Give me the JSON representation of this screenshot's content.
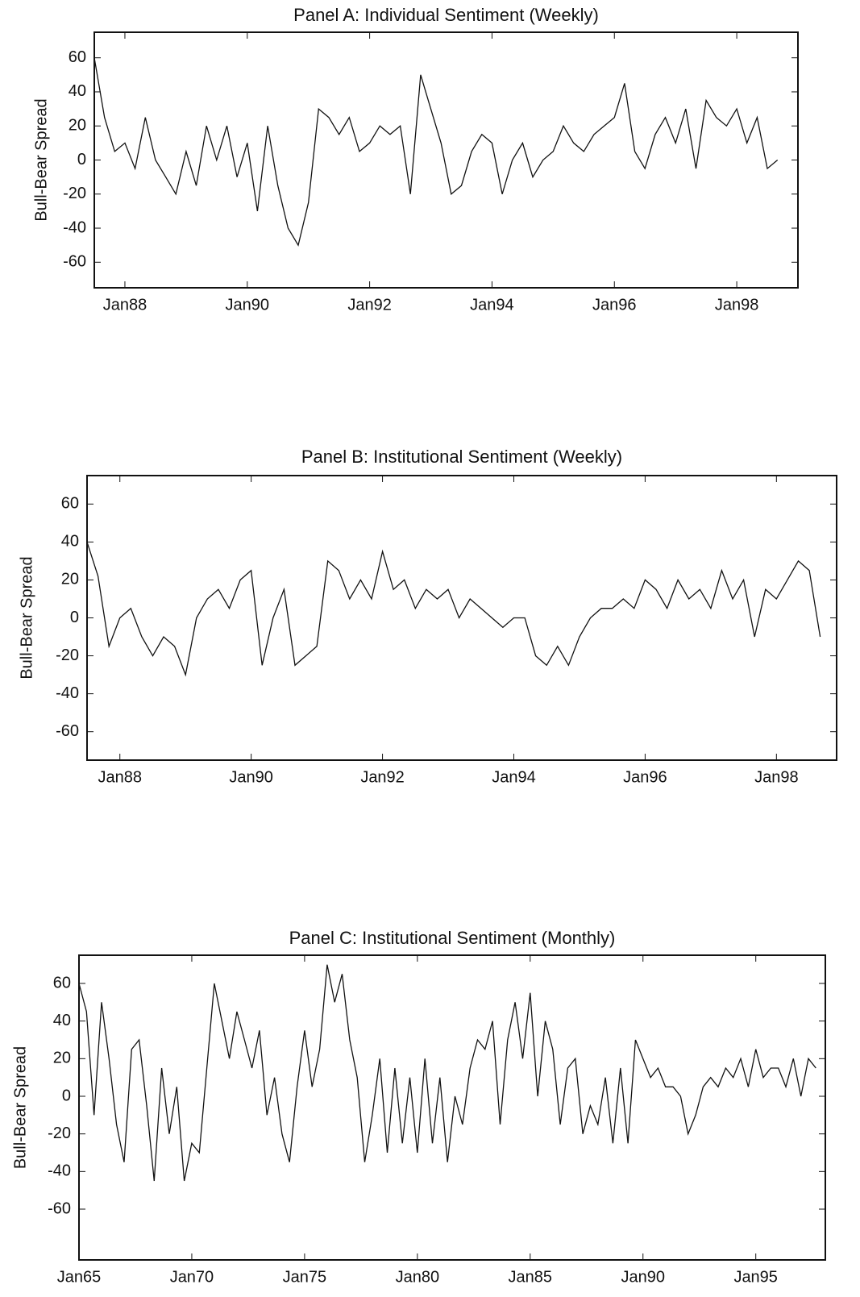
{
  "chart_data": [
    {
      "type": "line",
      "title": "Panel A: Individual Sentiment (Weekly)",
      "y_label": "Bull-Bear Spread",
      "color": "#111111",
      "x": [
        "1987-07",
        "1987-09",
        "1987-11",
        "1988-01",
        "1988-03",
        "1988-05",
        "1988-07",
        "1988-09",
        "1988-11",
        "1989-01",
        "1989-03",
        "1989-05",
        "1989-07",
        "1989-09",
        "1989-11",
        "1990-01",
        "1990-03",
        "1990-05",
        "1990-07",
        "1990-09",
        "1990-11",
        "1991-01",
        "1991-03",
        "1991-05",
        "1991-07",
        "1991-09",
        "1991-11",
        "1992-01",
        "1992-03",
        "1992-05",
        "1992-07",
        "1992-09",
        "1992-11",
        "1993-01",
        "1993-03",
        "1993-05",
        "1993-07",
        "1993-09",
        "1993-11",
        "1994-01",
        "1994-03",
        "1994-05",
        "1994-07",
        "1994-09",
        "1994-11",
        "1995-01",
        "1995-03",
        "1995-05",
        "1995-07",
        "1995-09",
        "1995-11",
        "1996-01",
        "1996-03",
        "1996-05",
        "1996-07",
        "1996-09",
        "1996-11",
        "1997-01",
        "1997-03",
        "1997-05",
        "1997-07",
        "1997-09",
        "1997-11",
        "1998-01",
        "1998-03",
        "1998-05",
        "1998-07",
        "1998-09"
      ],
      "values": [
        60,
        25,
        5,
        10,
        -5,
        25,
        0,
        -10,
        -20,
        5,
        -15,
        20,
        0,
        20,
        -10,
        10,
        -30,
        20,
        -15,
        -40,
        -50,
        -25,
        30,
        25,
        15,
        25,
        5,
        10,
        20,
        15,
        20,
        -20,
        50,
        30,
        10,
        -20,
        -15,
        5,
        15,
        10,
        -20,
        0,
        10,
        -10,
        0,
        5,
        20,
        10,
        5,
        15,
        20,
        25,
        45,
        5,
        -5,
        15,
        25,
        10,
        30,
        -5,
        35,
        25,
        20,
        30,
        10,
        25,
        -5,
        0
      ],
      "xlim": [
        "1987-07",
        "1999-01"
      ],
      "xticks": [
        {
          "value": "1988-01",
          "label": "Jan88"
        },
        {
          "value": "1990-01",
          "label": "Jan90"
        },
        {
          "value": "1992-01",
          "label": "Jan92"
        },
        {
          "value": "1994-01",
          "label": "Jan94"
        },
        {
          "value": "1996-01",
          "label": "Jan96"
        },
        {
          "value": "1998-01",
          "label": "Jan98"
        }
      ],
      "ylim": [
        -75,
        75
      ],
      "yticks": [
        -60,
        -40,
        -20,
        0,
        20,
        40,
        60
      ]
    },
    {
      "type": "line",
      "title": "Panel B: Institutional Sentiment (Weekly)",
      "y_label": "Bull-Bear Spread",
      "color": "#111111",
      "x": [
        "1987-07",
        "1987-09",
        "1987-11",
        "1988-01",
        "1988-03",
        "1988-05",
        "1988-07",
        "1988-09",
        "1988-11",
        "1989-01",
        "1989-03",
        "1989-05",
        "1989-07",
        "1989-09",
        "1989-11",
        "1990-01",
        "1990-03",
        "1990-05",
        "1990-07",
        "1990-09",
        "1990-11",
        "1991-01",
        "1991-03",
        "1991-05",
        "1991-07",
        "1991-09",
        "1991-11",
        "1992-01",
        "1992-03",
        "1992-05",
        "1992-07",
        "1992-09",
        "1992-11",
        "1993-01",
        "1993-03",
        "1993-05",
        "1993-07",
        "1993-09",
        "1993-11",
        "1994-01",
        "1994-03",
        "1994-05",
        "1994-07",
        "1994-09",
        "1994-11",
        "1995-01",
        "1995-03",
        "1995-05",
        "1995-07",
        "1995-09",
        "1995-11",
        "1996-01",
        "1996-03",
        "1996-05",
        "1996-07",
        "1996-09",
        "1996-11",
        "1997-01",
        "1997-03",
        "1997-05",
        "1997-07",
        "1997-09",
        "1997-11",
        "1998-01",
        "1998-03",
        "1998-05",
        "1998-07",
        "1998-09"
      ],
      "values": [
        40,
        22,
        -15,
        0,
        5,
        -10,
        -20,
        -10,
        -15,
        -30,
        0,
        10,
        15,
        5,
        20,
        25,
        -25,
        0,
        15,
        -25,
        -20,
        -15,
        30,
        25,
        10,
        20,
        10,
        35,
        15,
        20,
        5,
        15,
        10,
        15,
        0,
        10,
        5,
        0,
        -5,
        0,
        0,
        -20,
        -25,
        -15,
        -25,
        -10,
        0,
        5,
        5,
        10,
        5,
        20,
        15,
        5,
        20,
        10,
        15,
        5,
        25,
        10,
        20,
        -10,
        15,
        10,
        20,
        30,
        25,
        -10
      ],
      "xlim": [
        "1987-07",
        "1998-12"
      ],
      "xticks": [
        {
          "value": "1988-01",
          "label": "Jan88"
        },
        {
          "value": "1990-01",
          "label": "Jan90"
        },
        {
          "value": "1992-01",
          "label": "Jan92"
        },
        {
          "value": "1994-01",
          "label": "Jan94"
        },
        {
          "value": "1996-01",
          "label": "Jan96"
        },
        {
          "value": "1998-01",
          "label": "Jan98"
        }
      ],
      "ylim": [
        -75,
        75
      ],
      "yticks": [
        -60,
        -40,
        -20,
        0,
        20,
        40,
        60
      ]
    },
    {
      "type": "line",
      "title": "Panel C: Institutional Sentiment (Monthly)",
      "y_label": "Bull-Bear Spread",
      "color": "#111111",
      "x": [
        "1965-01",
        "1965-05",
        "1965-09",
        "1966-01",
        "1966-05",
        "1966-09",
        "1967-01",
        "1967-05",
        "1967-09",
        "1968-01",
        "1968-05",
        "1968-09",
        "1969-01",
        "1969-05",
        "1969-09",
        "1970-01",
        "1970-05",
        "1970-09",
        "1971-01",
        "1971-05",
        "1971-09",
        "1972-01",
        "1972-05",
        "1972-09",
        "1973-01",
        "1973-05",
        "1973-09",
        "1974-01",
        "1974-05",
        "1974-09",
        "1975-01",
        "1975-05",
        "1975-09",
        "1976-01",
        "1976-05",
        "1976-09",
        "1977-01",
        "1977-05",
        "1977-09",
        "1978-01",
        "1978-05",
        "1978-09",
        "1979-01",
        "1979-05",
        "1979-09",
        "1980-01",
        "1980-05",
        "1980-09",
        "1981-01",
        "1981-05",
        "1981-09",
        "1982-01",
        "1982-05",
        "1982-09",
        "1983-01",
        "1983-05",
        "1983-09",
        "1984-01",
        "1984-05",
        "1984-09",
        "1985-01",
        "1985-05",
        "1985-09",
        "1986-01",
        "1986-05",
        "1986-09",
        "1987-01",
        "1987-05",
        "1987-09",
        "1988-01",
        "1988-05",
        "1988-09",
        "1989-01",
        "1989-05",
        "1989-09",
        "1990-01",
        "1990-05",
        "1990-09",
        "1991-01",
        "1991-05",
        "1991-09",
        "1992-01",
        "1992-05",
        "1992-09",
        "1993-01",
        "1993-05",
        "1993-09",
        "1994-01",
        "1994-05",
        "1994-09",
        "1995-01",
        "1995-05",
        "1995-09",
        "1996-01",
        "1996-05",
        "1996-09",
        "1997-01",
        "1997-05",
        "1997-09"
      ],
      "values": [
        60,
        45,
        -10,
        50,
        20,
        -15,
        -35,
        25,
        30,
        -5,
        -45,
        15,
        -20,
        5,
        -45,
        -25,
        -30,
        15,
        60,
        40,
        20,
        45,
        30,
        15,
        35,
        -10,
        10,
        -20,
        -35,
        5,
        35,
        5,
        25,
        70,
        50,
        65,
        30,
        10,
        -35,
        -10,
        20,
        -30,
        15,
        -25,
        10,
        -30,
        20,
        -25,
        10,
        -35,
        0,
        -15,
        15,
        30,
        25,
        40,
        -15,
        30,
        50,
        20,
        55,
        0,
        40,
        25,
        -15,
        15,
        20,
        -20,
        -5,
        -15,
        10,
        -25,
        15,
        -25,
        30,
        20,
        10,
        15,
        5,
        5,
        0,
        -20,
        -10,
        5,
        10,
        5,
        15,
        10,
        20,
        5,
        25,
        10,
        15,
        15,
        5,
        20,
        0,
        20,
        15
      ],
      "xlim": [
        "1965-01",
        "1998-02"
      ],
      "xticks": [
        {
          "value": "1965-01",
          "label": "Jan65"
        },
        {
          "value": "1970-01",
          "label": "Jan70"
        },
        {
          "value": "1975-01",
          "label": "Jan75"
        },
        {
          "value": "1980-01",
          "label": "Jan80"
        },
        {
          "value": "1985-01",
          "label": "Jan85"
        },
        {
          "value": "1990-01",
          "label": "Jan90"
        },
        {
          "value": "1995-01",
          "label": "Jan95"
        }
      ],
      "ylim": [
        -87,
        75
      ],
      "yticks": [
        -60,
        -40,
        -20,
        0,
        20,
        40,
        60
      ]
    }
  ]
}
